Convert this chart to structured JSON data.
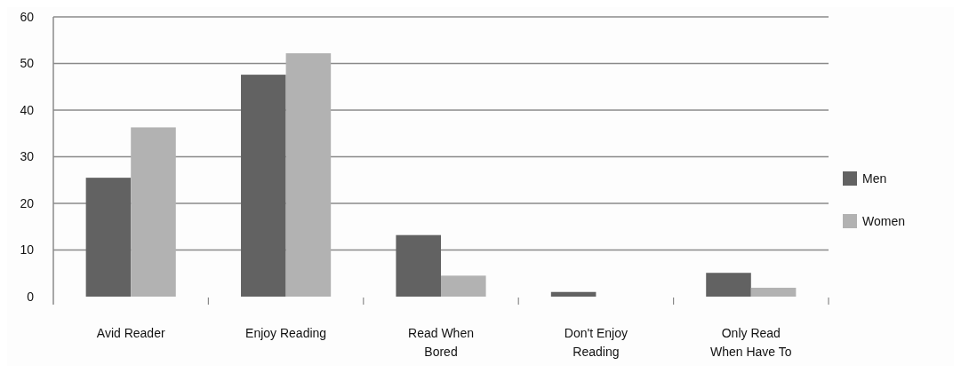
{
  "chart_data": {
    "type": "bar",
    "categories": [
      "Avid Reader",
      "Enjoy Reading",
      "Read When Bored",
      "Don't Enjoy Reading",
      "Only Read When Have To"
    ],
    "series": [
      {
        "name": "Men",
        "color": "#626262",
        "values": [
          25.5,
          47.6,
          13.2,
          1,
          5.1
        ]
      },
      {
        "name": "Women",
        "color": "#b2b2b2",
        "values": [
          36.3,
          52.2,
          4.5,
          0,
          1.9
        ]
      }
    ],
    "ylim": [
      0,
      60
    ],
    "yticks": [
      0,
      10,
      20,
      30,
      40,
      50,
      60
    ],
    "grid": "y",
    "legend": "right"
  }
}
